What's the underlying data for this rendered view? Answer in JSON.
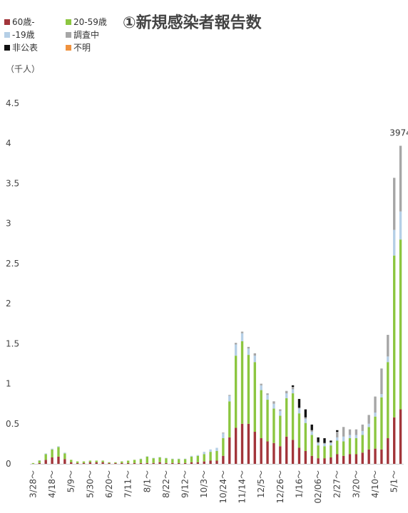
{
  "chart_data": {
    "type": "bar",
    "stacked": true,
    "title": "①新規感染者報告数",
    "unit_label": "（千人）",
    "ylim": [
      0,
      4.5
    ],
    "yticks": [
      "0",
      "0.5",
      "1",
      "1.5",
      "2",
      "2.5",
      "3",
      "3.5",
      "4",
      "4.5"
    ],
    "grid": false,
    "legend_position": "top-left",
    "annotation": {
      "text": "3974",
      "week_index": 58
    },
    "x_tick_labels": [
      "3/28～",
      "4/18～",
      "5/9～",
      "5/30～",
      "6/20～",
      "7/11～",
      "8/1～",
      "8/22～",
      "9/12～",
      "10/3～",
      "10/24～",
      "11/14～",
      "12/5～",
      "12/26～",
      "1/16～",
      "02/06～",
      "2/27～",
      "3/20～",
      "4/10～",
      "5/1～"
    ],
    "x_tick_every": 3,
    "series": [
      {
        "name": "60歳-",
        "color": "#a2353a",
        "values": [
          0,
          0.01,
          0.05,
          0.08,
          0.09,
          0.06,
          0.02,
          0.01,
          0.01,
          0.02,
          0.02,
          0.02,
          0.01,
          0.01,
          0.01,
          0.01,
          0.01,
          0.01,
          0.01,
          0.01,
          0.02,
          0.01,
          0.01,
          0.01,
          0.01,
          0.02,
          0.02,
          0.03,
          0.04,
          0.04,
          0.1,
          0.33,
          0.45,
          0.5,
          0.5,
          0.4,
          0.32,
          0.28,
          0.26,
          0.22,
          0.34,
          0.3,
          0.2,
          0.16,
          0.1,
          0.07,
          0.07,
          0.08,
          0.12,
          0.1,
          0.12,
          0.12,
          0.14,
          0.18,
          0.19,
          0.18,
          0.32,
          0.58,
          0.68
        ]
      },
      {
        "name": "20-59歳",
        "color": "#8cc640",
        "values": [
          0.01,
          0.03,
          0.07,
          0.1,
          0.12,
          0.07,
          0.03,
          0.02,
          0.02,
          0.02,
          0.02,
          0.02,
          0.01,
          0.01,
          0.02,
          0.03,
          0.04,
          0.05,
          0.08,
          0.06,
          0.06,
          0.06,
          0.05,
          0.05,
          0.05,
          0.07,
          0.08,
          0.09,
          0.11,
          0.12,
          0.22,
          0.45,
          0.9,
          1.03,
          0.86,
          0.87,
          0.6,
          0.52,
          0.43,
          0.38,
          0.48,
          0.58,
          0.43,
          0.35,
          0.26,
          0.16,
          0.15,
          0.15,
          0.17,
          0.18,
          0.2,
          0.2,
          0.22,
          0.28,
          0.4,
          0.65,
          0.95,
          2.02,
          2.12
        ]
      },
      {
        "name": "-19歳",
        "color": "#b5cfe6",
        "values": [
          0,
          0.005,
          0.01,
          0.01,
          0.01,
          0.01,
          0,
          0,
          0,
          0,
          0,
          0,
          0,
          0,
          0,
          0,
          0,
          0.005,
          0.005,
          0.005,
          0.005,
          0.005,
          0.005,
          0.005,
          0.005,
          0.01,
          0.01,
          0.03,
          0.03,
          0.04,
          0.06,
          0.07,
          0.14,
          0.1,
          0.08,
          0.08,
          0.06,
          0.06,
          0.06,
          0.06,
          0.06,
          0.05,
          0.06,
          0.05,
          0.04,
          0.03,
          0.03,
          0.03,
          0.04,
          0.06,
          0.04,
          0.04,
          0.05,
          0.04,
          0.05,
          0.04,
          0.07,
          0.32,
          0.35
        ]
      },
      {
        "name": "調査中",
        "color": "#a6a6a6",
        "values": [
          0,
          0,
          0,
          0,
          0,
          0,
          0,
          0,
          0,
          0,
          0,
          0,
          0,
          0,
          0,
          0,
          0,
          0,
          0,
          0,
          0,
          0,
          0,
          0,
          0,
          0,
          0,
          0,
          0,
          0,
          0.01,
          0.01,
          0.02,
          0.02,
          0.02,
          0.03,
          0.02,
          0.02,
          0.03,
          0.02,
          0.03,
          0.03,
          0.01,
          0.02,
          0.02,
          0.01,
          0.01,
          0.01,
          0.07,
          0.12,
          0.07,
          0.07,
          0.08,
          0.11,
          0.2,
          0.32,
          0.27,
          0.65,
          0.82
        ]
      },
      {
        "name": "非公表",
        "color": "#111111",
        "values": [
          0,
          0,
          0,
          0,
          0,
          0,
          0,
          0,
          0,
          0,
          0,
          0,
          0,
          0,
          0,
          0,
          0,
          0,
          0,
          0,
          0,
          0,
          0,
          0,
          0,
          0,
          0,
          0,
          0,
          0,
          0,
          0,
          0,
          0,
          0,
          0,
          0,
          0,
          0,
          0,
          0,
          0.02,
          0.11,
          0.1,
          0.07,
          0.06,
          0.06,
          0.02,
          0.02,
          0,
          0,
          0,
          0,
          0,
          0,
          0,
          0,
          0,
          0
        ]
      },
      {
        "name": "不明",
        "color": "#f0923e",
        "values": [
          0,
          0,
          0,
          0,
          0,
          0,
          0,
          0,
          0,
          0,
          0,
          0,
          0,
          0,
          0,
          0,
          0,
          0,
          0,
          0,
          0,
          0,
          0,
          0,
          0,
          0,
          0,
          0,
          0,
          0,
          0,
          0,
          0,
          0,
          0,
          0,
          0,
          0,
          0,
          0,
          0,
          0,
          0,
          0,
          0,
          0,
          0,
          0,
          0,
          0,
          0,
          0,
          0,
          0,
          0,
          0,
          0,
          0,
          0
        ]
      }
    ]
  }
}
